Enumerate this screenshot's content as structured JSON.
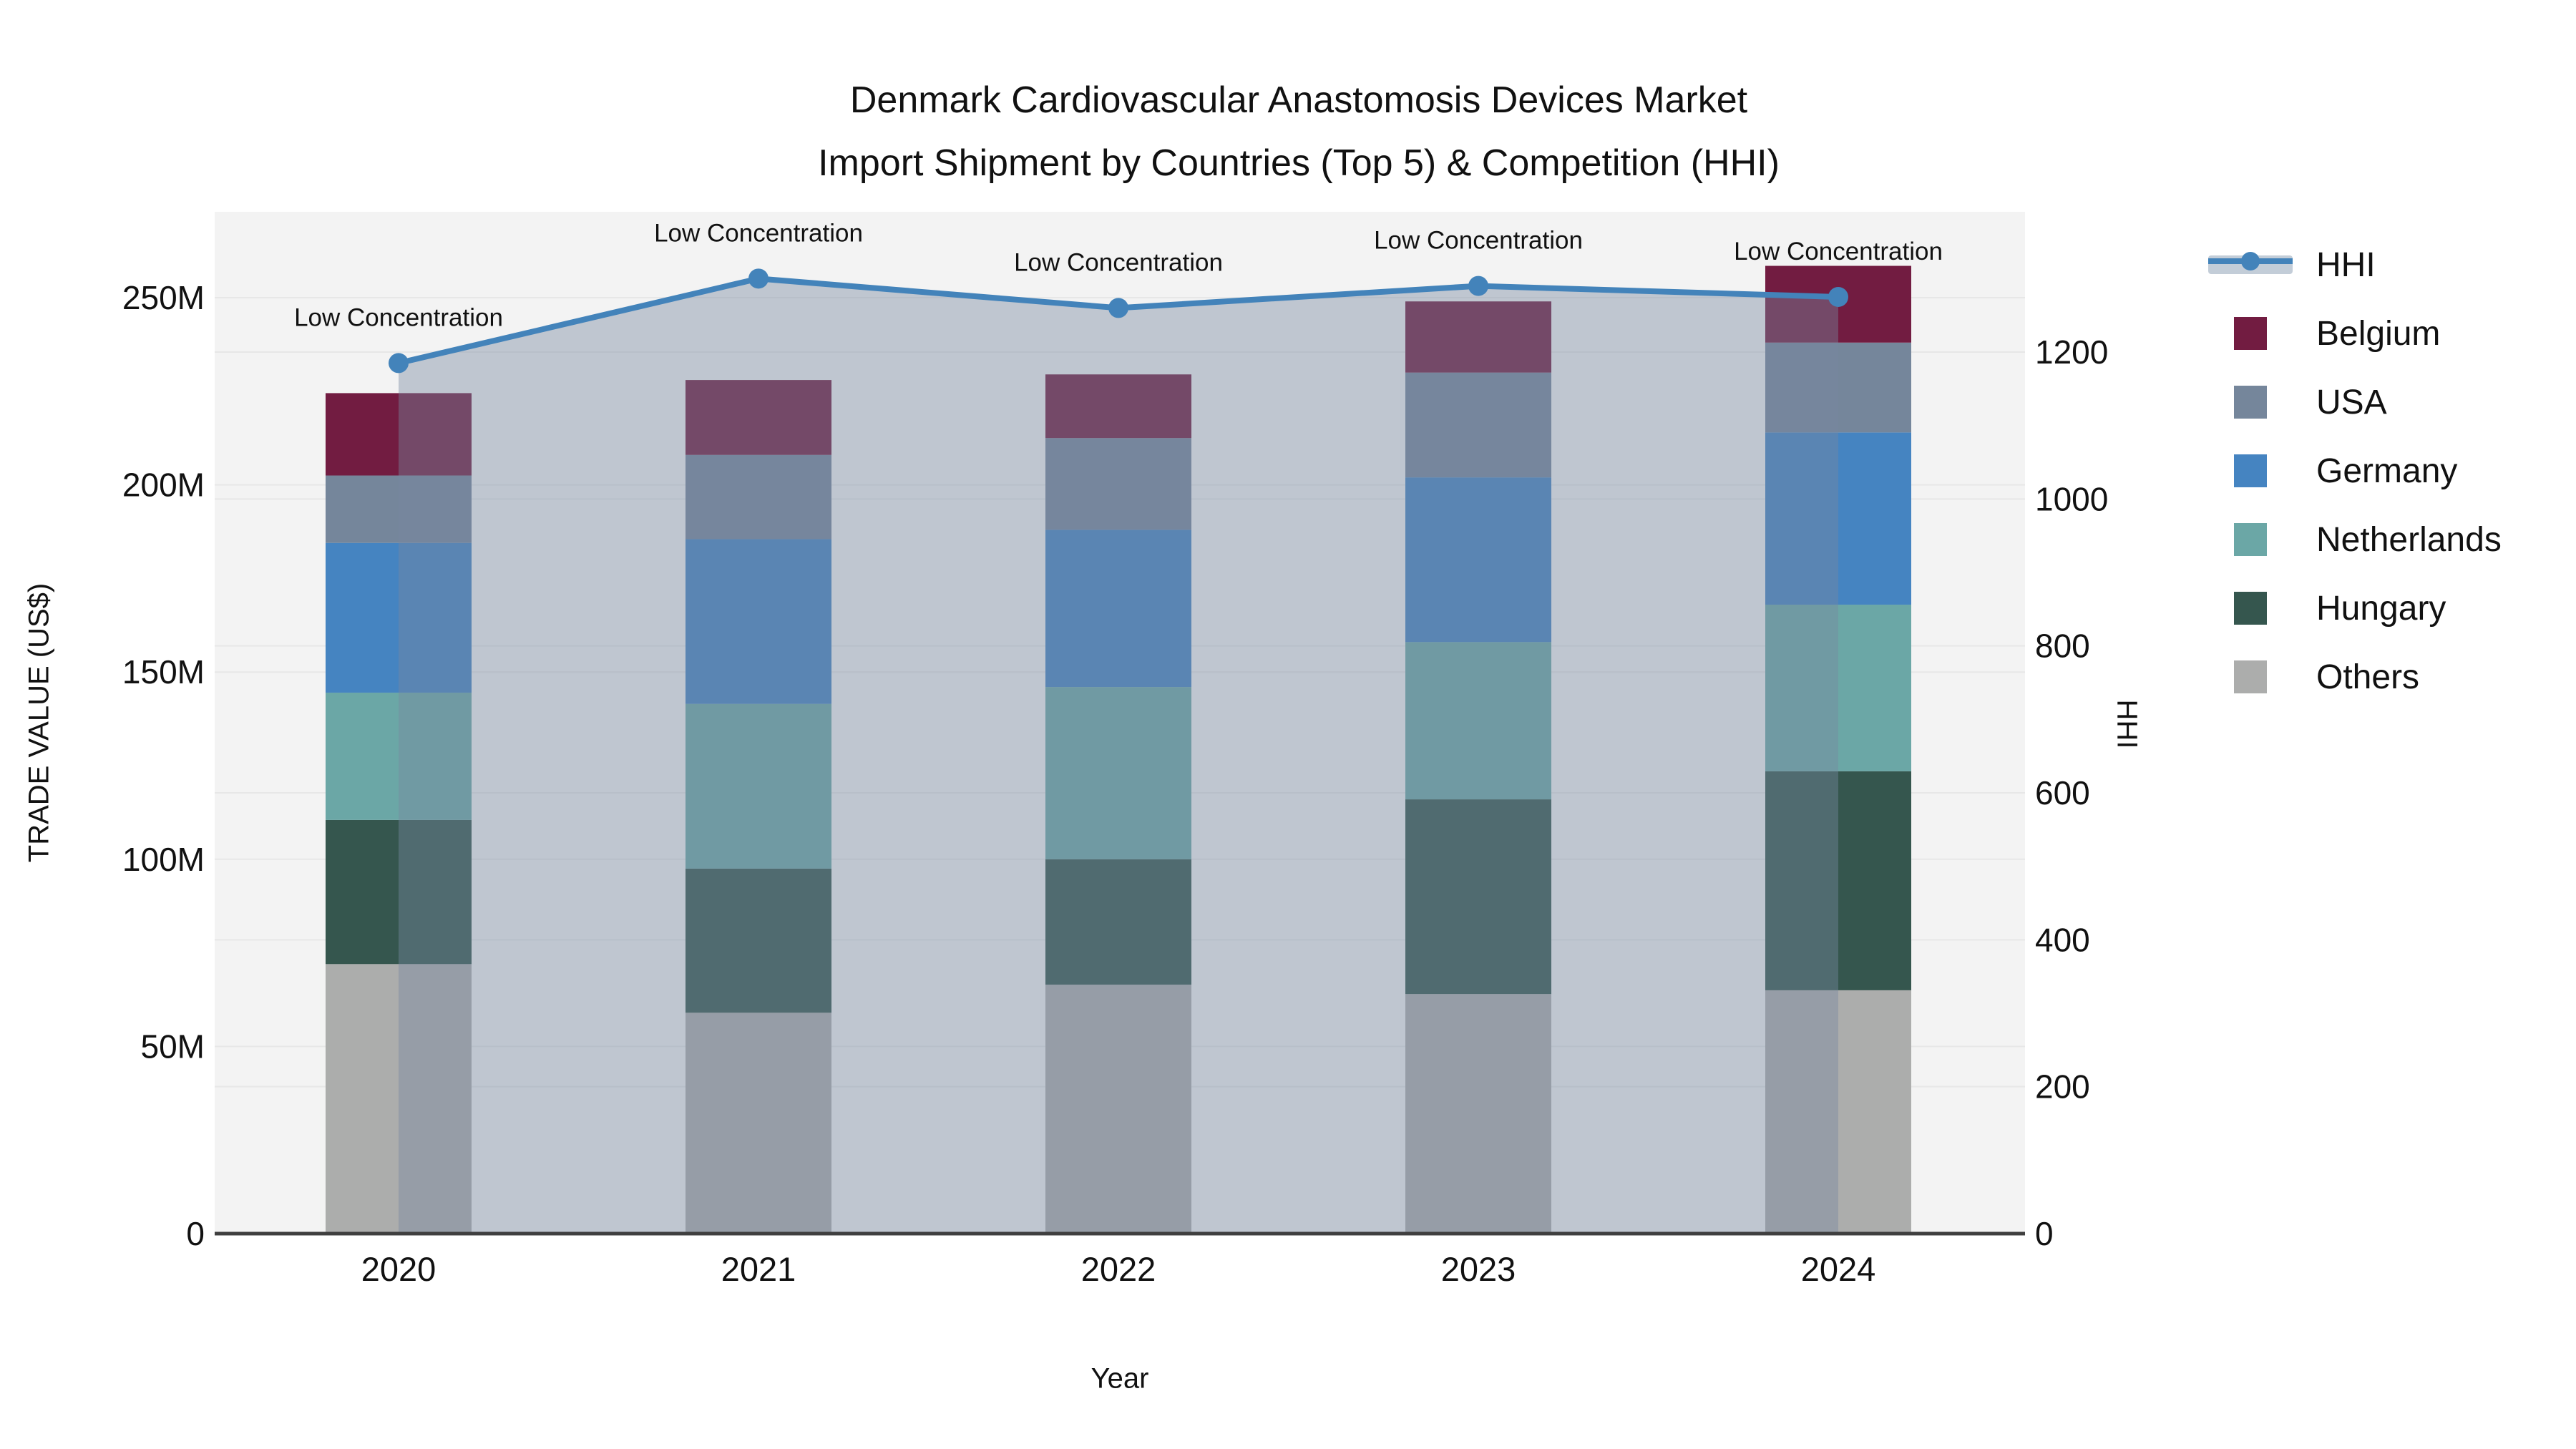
{
  "title": {
    "line1": "Denmark Cardiovascular Anastomosis Devices Market",
    "line2": "Import Shipment by Countries (Top 5) & Competition (HHI)"
  },
  "axes": {
    "left_title": "TRADE VALUE (US$)",
    "right_title": "HHI",
    "x_title": "Year"
  },
  "annotation_label": "Low Concentration",
  "colors": {
    "plot_bg": "#f3f3f3",
    "grid": "#e7e7e7",
    "axis_line": "#3f3f3f",
    "text": "#111111",
    "hhi_line": "#4383ba",
    "hhi_fill": "rgba(120,135,160,0.42)",
    "legend_band": "#c3cdd8"
  },
  "chart_data": {
    "type": "combo_stacked_bar_line",
    "title": "Denmark Cardiovascular Anastomosis Devices Market — Import Shipment by Countries (Top 5) & Competition (HHI)",
    "categories": [
      "2020",
      "2021",
      "2022",
      "2023",
      "2024"
    ],
    "bar_value_unit": "Million US$",
    "series": [
      {
        "name": "Belgium",
        "color": "#721c41",
        "values": [
          22.0,
          20.0,
          17.0,
          19.0,
          20.5
        ]
      },
      {
        "name": "USA",
        "color": "#75869b",
        "values": [
          18.0,
          22.5,
          24.5,
          28.0,
          24.0
        ]
      },
      {
        "name": "Germany",
        "color": "#4584c1",
        "values": [
          40.0,
          44.0,
          42.0,
          44.0,
          46.0
        ]
      },
      {
        "name": "Netherlands",
        "color": "#6ba7a6",
        "values": [
          34.0,
          44.0,
          46.0,
          42.0,
          44.5
        ]
      },
      {
        "name": "Hungary",
        "color": "#35564e",
        "values": [
          38.5,
          38.5,
          33.5,
          52.0,
          58.5
        ]
      },
      {
        "name": "Others",
        "color": "#acadac",
        "values": [
          72.0,
          59.0,
          66.5,
          64.0,
          65.0
        ]
      }
    ],
    "stack_order_bottom_to_top": [
      "Others",
      "Hungary",
      "Netherlands",
      "Germany",
      "USA",
      "Belgium"
    ],
    "bar_totals": [
      224.5,
      228.0,
      229.5,
      249.0,
      258.5
    ],
    "line": {
      "name": "HHI",
      "values": [
        1185,
        1300,
        1260,
        1290,
        1275
      ],
      "annotations": [
        "Low Concentration",
        "Low Concentration",
        "Low Concentration",
        "Low Concentration",
        "Low Concentration"
      ],
      "area_fill": true
    },
    "y_left": {
      "title": "TRADE VALUE (US$)",
      "tick_labels": [
        "0",
        "50M",
        "100M",
        "150M",
        "200M",
        "250M"
      ],
      "tick_values": [
        0,
        50,
        100,
        150,
        200,
        250
      ],
      "range": [
        0,
        273
      ]
    },
    "y_right": {
      "title": "HHI",
      "tick_labels": [
        "0",
        "200",
        "400",
        "600",
        "800",
        "1000",
        "1200"
      ],
      "tick_values": [
        0,
        200,
        400,
        600,
        800,
        1000,
        1200
      ],
      "range": [
        0,
        1391
      ]
    },
    "x": {
      "title": "Year"
    },
    "grid": "horizontal-only",
    "legend_position": "right",
    "legend_items": [
      "HHI",
      "Belgium",
      "USA",
      "Germany",
      "Netherlands",
      "Hungary",
      "Others"
    ]
  }
}
